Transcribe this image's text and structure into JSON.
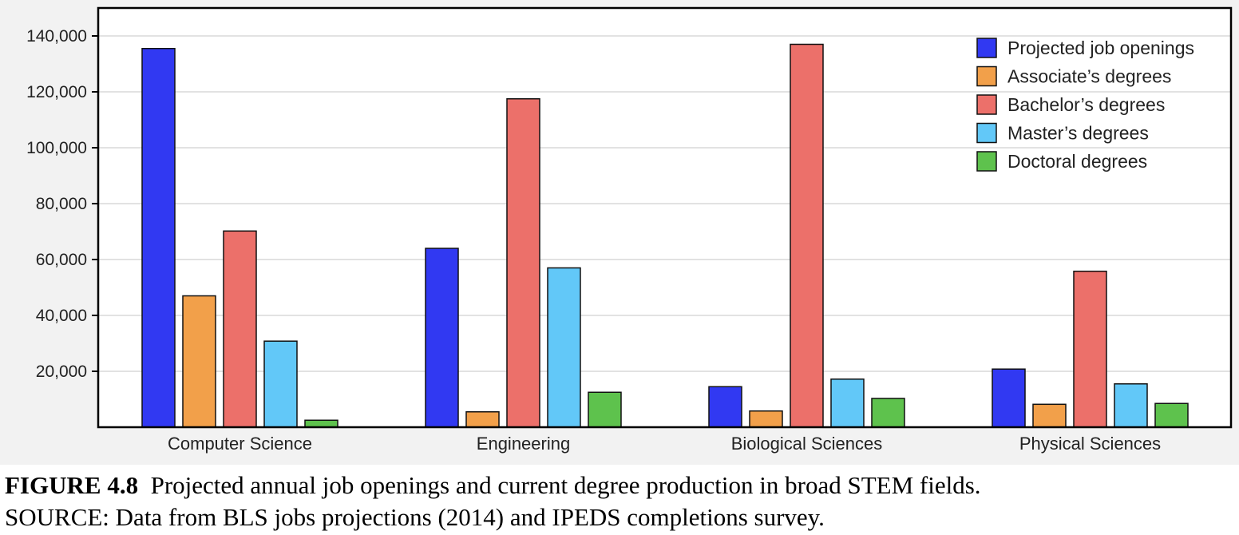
{
  "chart_data": {
    "type": "bar",
    "title": "",
    "xlabel": "",
    "ylabel": "",
    "ylim": [
      0,
      150000
    ],
    "yticks": [
      20000,
      40000,
      60000,
      80000,
      100000,
      120000,
      140000
    ],
    "ytick_labels": [
      "20,000",
      "40,000",
      "60,000",
      "80,000",
      "100,000",
      "120,000",
      "140,000"
    ],
    "grid": true,
    "legend_position": "top-right",
    "categories": [
      "Computer Science",
      "Engineering",
      "Biological Sciences",
      "Physical Sciences"
    ],
    "series": [
      {
        "name": "Projected job openings",
        "color": "#3139f2",
        "values": [
          135500,
          64000,
          14500,
          20800
        ]
      },
      {
        "name": "Associate’s degrees",
        "color": "#f2a04a",
        "values": [
          47000,
          5500,
          5800,
          8200
        ]
      },
      {
        "name": "Bachelor’s degrees",
        "color": "#ec706a",
        "values": [
          70200,
          117500,
          137000,
          55800
        ]
      },
      {
        "name": "Master’s degrees",
        "color": "#62c8f8",
        "values": [
          30800,
          57000,
          17200,
          15500
        ]
      },
      {
        "name": "Doctoral degrees",
        "color": "#5ec24d",
        "values": [
          2500,
          12500,
          10300,
          8500
        ]
      }
    ]
  },
  "caption": {
    "figure_number": "FIGURE 4.8",
    "line1_text": "Projected annual job openings and current degree production in broad STEM fields.",
    "line2_text": "SOURCE: Data from BLS jobs projections (2014) and IPEDS completions survey."
  }
}
